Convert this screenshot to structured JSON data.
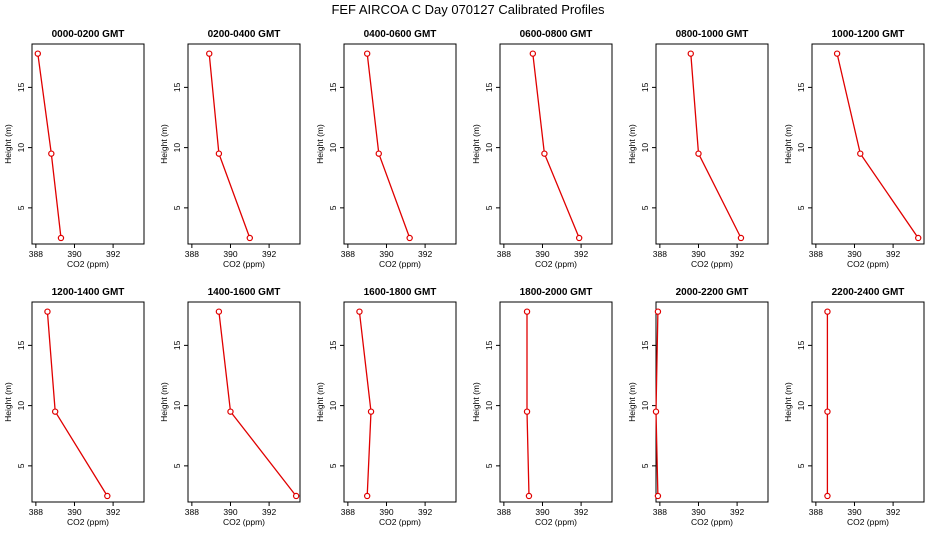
{
  "title": "FEF AIRCOA C  Day 070127  Calibrated Profiles",
  "chart_data": {
    "type": "line",
    "title": "FEF AIRCOA C  Day 070127  Calibrated Profiles",
    "xlabel": "CO2 (ppm)",
    "ylabel": "Height (m)",
    "xlim": [
      387.8,
      393.6
    ],
    "ylim": [
      2.0,
      18.6
    ],
    "xticks": [
      388,
      390,
      392
    ],
    "yticks": [
      5,
      10,
      15
    ],
    "heights": [
      17.8,
      9.5,
      2.5
    ],
    "panels": [
      {
        "name": "0000-0200 GMT",
        "co2": [
          388.1,
          388.8,
          389.3
        ]
      },
      {
        "name": "0200-0400 GMT",
        "co2": [
          388.9,
          389.4,
          391.0
        ]
      },
      {
        "name": "0400-0600 GMT",
        "co2": [
          389.0,
          389.6,
          391.2
        ]
      },
      {
        "name": "0600-0800 GMT",
        "co2": [
          389.5,
          390.1,
          391.9
        ]
      },
      {
        "name": "0800-1000 GMT",
        "co2": [
          389.6,
          390.0,
          392.2
        ]
      },
      {
        "name": "1000-1200 GMT",
        "co2": [
          389.1,
          390.3,
          393.3
        ]
      },
      {
        "name": "1200-1400 GMT",
        "co2": [
          388.6,
          389.0,
          391.7
        ]
      },
      {
        "name": "1400-1600 GMT",
        "co2": [
          389.4,
          390.0,
          393.4
        ]
      },
      {
        "name": "1600-1800 GMT",
        "co2": [
          388.6,
          389.2,
          389.0
        ]
      },
      {
        "name": "1800-2000 GMT",
        "co2": [
          389.2,
          389.2,
          389.3
        ]
      },
      {
        "name": "2000-2200 GMT",
        "co2": [
          387.9,
          387.8,
          387.9
        ]
      },
      {
        "name": "2200-2400 GMT",
        "co2": [
          388.6,
          388.6,
          388.6
        ]
      }
    ]
  }
}
